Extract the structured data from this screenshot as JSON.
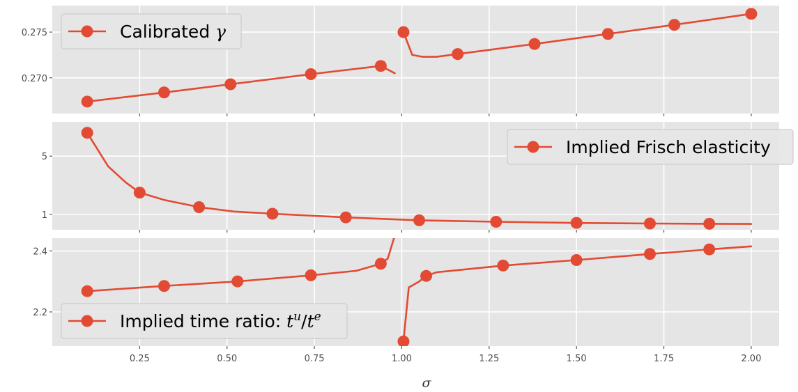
{
  "figure": {
    "xlabel": "σ"
  },
  "colors": {
    "series": "#E24A33",
    "panel": "#E5E5E5",
    "grid": "#FFFFFF"
  },
  "x_ticks": [
    "0.25",
    "0.50",
    "0.75",
    "1.00",
    "1.25",
    "1.50",
    "1.75",
    "2.00"
  ],
  "chart_data": [
    {
      "type": "line",
      "title": "",
      "xlabel": "",
      "ylabel": "",
      "xlim": [
        0.0,
        2.08
      ],
      "ylim": [
        0.2661,
        0.2779
      ],
      "yticks": [
        0.27,
        0.275
      ],
      "ytick_labels": [
        "0.270",
        "0.275"
      ],
      "grid": true,
      "legend": {
        "position": "top-left",
        "label_main": "Calibrated ",
        "label_symbol": "γ"
      },
      "series": [
        {
          "name": "Calibrated γ",
          "segments": [
            {
              "x": [
                0.1,
                0.32,
                0.51,
                0.74,
                0.94,
                0.98
              ],
              "y": [
                0.2674,
                0.2684,
                0.2693,
                0.2704,
                0.2713,
                0.2705
              ]
            },
            {
              "x": [
                1.005,
                1.03,
                1.06,
                1.1,
                1.16,
                1.38,
                1.59,
                1.78,
                2.0
              ],
              "y": [
                0.275,
                0.2725,
                0.2723,
                0.2723,
                0.2726,
                0.2737,
                0.2748,
                0.2758,
                0.277
              ]
            }
          ],
          "markers": {
            "x": [
              0.1,
              0.32,
              0.51,
              0.74,
              0.94,
              1.005,
              1.16,
              1.38,
              1.59,
              1.78,
              2.0
            ],
            "y": [
              0.2674,
              0.2684,
              0.2693,
              0.2704,
              0.2713,
              0.275,
              0.2726,
              0.2737,
              0.2748,
              0.2758,
              0.277
            ]
          }
        }
      ]
    },
    {
      "type": "line",
      "title": "",
      "xlabel": "",
      "ylabel": "",
      "xlim": [
        0.0,
        2.08
      ],
      "ylim": [
        -0.05,
        7.35
      ],
      "yticks": [
        1,
        5
      ],
      "ytick_labels": [
        "1",
        "5"
      ],
      "grid": true,
      "legend": {
        "position": "top-right",
        "label_main": "Implied Frisch elasticity"
      },
      "series": [
        {
          "name": "Implied Frisch elasticity",
          "segments": [
            {
              "x": [
                0.1,
                0.16,
                0.21,
                0.25,
                0.32,
                0.42,
                0.52,
                0.63,
                0.84,
                1.05,
                1.27,
                1.5,
                1.71,
                1.88,
                2.0
              ],
              "y": [
                6.6,
                4.3,
                3.2,
                2.5,
                2.0,
                1.5,
                1.2,
                1.05,
                0.8,
                0.6,
                0.5,
                0.42,
                0.38,
                0.36,
                0.35
              ]
            }
          ],
          "markers": {
            "x": [
              0.1,
              0.25,
              0.42,
              0.63,
              0.84,
              1.05,
              1.27,
              1.5,
              1.71,
              1.88
            ],
            "y": [
              6.6,
              2.5,
              1.5,
              1.05,
              0.8,
              0.6,
              0.5,
              0.42,
              0.38,
              0.36
            ]
          }
        }
      ]
    },
    {
      "type": "line",
      "title": "",
      "xlabel": "",
      "ylabel": "",
      "xlim": [
        0.0,
        2.08
      ],
      "ylim": [
        2.088,
        2.442
      ],
      "yticks": [
        2.2,
        2.4
      ],
      "ytick_labels": [
        "2.2",
        "2.4"
      ],
      "grid": true,
      "legend": {
        "position": "bottom-left",
        "label_main": "Implied time ratio: ",
        "label_t": "t",
        "label_u": "u",
        "label_e": "e"
      },
      "series": [
        {
          "name": "Implied time ratio: t^u/t^e",
          "segments": [
            {
              "x": [
                0.1,
                0.32,
                0.53,
                0.74,
                0.87,
                0.94,
                0.96,
                0.98
              ],
              "y": [
                2.268,
                2.285,
                2.3,
                2.32,
                2.335,
                2.358,
                2.375,
                2.45
              ]
            },
            {
              "x": [
                1.005,
                1.02,
                1.05,
                1.07,
                1.1,
                1.29,
                1.5,
                1.71,
                1.88,
                2.0
              ],
              "y": [
                2.103,
                2.28,
                2.3,
                2.318,
                2.33,
                2.352,
                2.37,
                2.39,
                2.405,
                2.415
              ]
            }
          ],
          "markers": {
            "x": [
              0.1,
              0.32,
              0.53,
              0.74,
              0.94,
              1.005,
              1.07,
              1.29,
              1.5,
              1.71,
              1.88
            ],
            "y": [
              2.268,
              2.285,
              2.3,
              2.32,
              2.358,
              2.103,
              2.318,
              2.352,
              2.37,
              2.39,
              2.405
            ]
          }
        }
      ]
    }
  ]
}
